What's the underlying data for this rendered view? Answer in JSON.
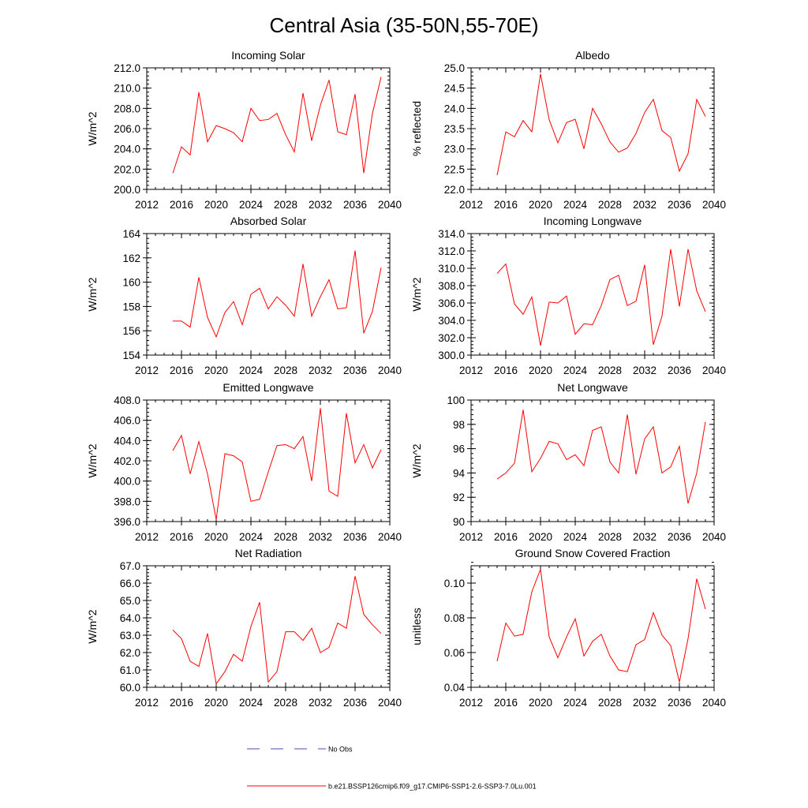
{
  "title": "Central Asia (35-50N,55-70E)",
  "legend": [
    {
      "label": "No Obs",
      "color": "#4a4ab8",
      "dash": "dashed"
    },
    {
      "label": "b.e21.BSSP126cmip6.f09_g17.CMIP6-SSP1-2.6-SSP3-7.0Lu.001",
      "color": "#ff0000",
      "dash": "solid"
    }
  ],
  "chart_data": [
    {
      "type": "line",
      "title": "Incoming Solar",
      "ylabel": "W/m^2",
      "xlim": [
        2012,
        2040
      ],
      "ylim": [
        200,
        212
      ],
      "xticks": [
        2012,
        2016,
        2020,
        2024,
        2028,
        2032,
        2036,
        2040
      ],
      "xtick_labels": [
        "2012",
        "2016",
        "2020",
        "2024",
        "2028",
        "2032",
        "2036",
        "2040"
      ],
      "yticks": [
        200,
        202,
        204,
        206,
        208,
        210,
        212
      ],
      "ytick_labels": [
        "200.0",
        "202.0",
        "204.0",
        "206.0",
        "208.0",
        "210.0",
        "212.0"
      ],
      "yminor": 0.4,
      "color": "#ff0000",
      "x": [
        2015,
        2016,
        2017,
        2018,
        2019,
        2020,
        2021,
        2022,
        2023,
        2024,
        2025,
        2026,
        2027,
        2028,
        2029,
        2030,
        2031,
        2032,
        2033,
        2034,
        2035,
        2036,
        2037,
        2038,
        2039
      ],
      "y": [
        201.6,
        204.2,
        203.4,
        209.6,
        204.7,
        206.3,
        206.0,
        205.6,
        204.7,
        208.0,
        206.8,
        206.9,
        207.5,
        205.4,
        203.7,
        209.5,
        204.8,
        208.3,
        210.8,
        205.7,
        205.4,
        209.4,
        201.6,
        207.5,
        211.1
      ]
    },
    {
      "type": "line",
      "title": "Albedo",
      "ylabel": "% reflected",
      "xlim": [
        2012,
        2040
      ],
      "ylim": [
        22,
        25
      ],
      "xticks": [
        2012,
        2016,
        2020,
        2024,
        2028,
        2032,
        2036,
        2040
      ],
      "xtick_labels": [
        "2012",
        "2016",
        "2020",
        "2024",
        "2028",
        "2032",
        "2036",
        "2040"
      ],
      "yticks": [
        22,
        22.5,
        23,
        23.5,
        24,
        24.5,
        25
      ],
      "ytick_labels": [
        "22.0",
        "22.5",
        "23.0",
        "23.5",
        "24.0",
        "24.5",
        "25.0"
      ],
      "yminor": 0.1,
      "color": "#ff0000",
      "x": [
        2015,
        2016,
        2017,
        2018,
        2019,
        2020,
        2021,
        2022,
        2023,
        2024,
        2025,
        2026,
        2027,
        2028,
        2029,
        2030,
        2031,
        2032,
        2033,
        2034,
        2035,
        2036,
        2037,
        2038,
        2039
      ],
      "y": [
        22.35,
        23.42,
        23.3,
        23.7,
        23.42,
        24.85,
        23.72,
        23.15,
        23.65,
        23.73,
        23.0,
        24.0,
        23.62,
        23.17,
        22.92,
        23.02,
        23.38,
        23.9,
        24.22,
        23.45,
        23.28,
        22.45,
        22.88,
        24.22,
        23.8
      ]
    },
    {
      "type": "line",
      "title": "Absorbed Solar",
      "ylabel": "W/m^2",
      "xlim": [
        2012,
        2040
      ],
      "ylim": [
        154,
        164
      ],
      "xticks": [
        2012,
        2016,
        2020,
        2024,
        2028,
        2032,
        2036,
        2040
      ],
      "xtick_labels": [
        "2012",
        "2016",
        "2020",
        "2024",
        "2028",
        "2032",
        "2036",
        "2040"
      ],
      "yticks": [
        154,
        156,
        158,
        160,
        162,
        164
      ],
      "ytick_labels": [
        "154",
        "156",
        "158",
        "160",
        "162",
        "164"
      ],
      "yminor": 0.4,
      "color": "#ff0000",
      "x": [
        2015,
        2016,
        2017,
        2018,
        2019,
        2020,
        2021,
        2022,
        2023,
        2024,
        2025,
        2026,
        2027,
        2028,
        2029,
        2030,
        2031,
        2032,
        2033,
        2034,
        2035,
        2036,
        2037,
        2038,
        2039
      ],
      "y": [
        156.8,
        156.8,
        156.3,
        160.4,
        157.1,
        155.5,
        157.5,
        158.4,
        156.5,
        159.0,
        159.5,
        157.8,
        158.8,
        158.1,
        157.2,
        161.5,
        157.2,
        158.8,
        160.2,
        157.8,
        157.9,
        162.6,
        155.8,
        157.6,
        161.2
      ]
    },
    {
      "type": "line",
      "title": "Incoming Longwave",
      "ylabel": "W/m^2",
      "xlim": [
        2012,
        2040
      ],
      "ylim": [
        300,
        314
      ],
      "xticks": [
        2012,
        2016,
        2020,
        2024,
        2028,
        2032,
        2036,
        2040
      ],
      "xtick_labels": [
        "2012",
        "2016",
        "2020",
        "2024",
        "2028",
        "2032",
        "2036",
        "2040"
      ],
      "yticks": [
        300,
        302,
        304,
        306,
        308,
        310,
        312,
        314
      ],
      "ytick_labels": [
        "300.0",
        "302.0",
        "304.0",
        "306.0",
        "308.0",
        "310.0",
        "312.0",
        "314.0"
      ],
      "yminor": 0.4,
      "color": "#ff0000",
      "x": [
        2015,
        2016,
        2017,
        2018,
        2019,
        2020,
        2021,
        2022,
        2023,
        2024,
        2025,
        2026,
        2027,
        2028,
        2029,
        2030,
        2031,
        2032,
        2033,
        2034,
        2035,
        2036,
        2037,
        2038,
        2039
      ],
      "y": [
        309.4,
        310.5,
        305.9,
        304.7,
        306.7,
        301.1,
        306.1,
        306.0,
        306.8,
        302.4,
        303.6,
        303.5,
        305.7,
        308.7,
        309.2,
        305.7,
        306.2,
        310.4,
        301.2,
        304.5,
        312.2,
        305.6,
        312.2,
        307.4,
        305.0
      ]
    },
    {
      "type": "line",
      "title": "Emitted Longwave",
      "ylabel": "W/m^2",
      "xlim": [
        2012,
        2040
      ],
      "ylim": [
        396,
        408
      ],
      "xticks": [
        2012,
        2016,
        2020,
        2024,
        2028,
        2032,
        2036,
        2040
      ],
      "xtick_labels": [
        "2012",
        "2016",
        "2020",
        "2024",
        "2028",
        "2032",
        "2036",
        "2040"
      ],
      "yticks": [
        396,
        398,
        400,
        402,
        404,
        406,
        408
      ],
      "ytick_labels": [
        "396.0",
        "398.0",
        "400.0",
        "402.0",
        "404.0",
        "406.0",
        "408.0"
      ],
      "yminor": 0.4,
      "color": "#ff0000",
      "x": [
        2015,
        2016,
        2017,
        2018,
        2019,
        2020,
        2021,
        2022,
        2023,
        2024,
        2025,
        2026,
        2027,
        2028,
        2029,
        2030,
        2031,
        2032,
        2033,
        2034,
        2035,
        2036,
        2037,
        2038,
        2039
      ],
      "y": [
        403.0,
        404.5,
        400.7,
        403.9,
        400.7,
        396.2,
        402.7,
        402.5,
        401.9,
        398.0,
        398.2,
        400.9,
        403.5,
        403.6,
        403.2,
        404.4,
        400.0,
        407.2,
        399.0,
        398.5,
        406.7,
        401.8,
        403.6,
        401.3,
        403.1
      ]
    },
    {
      "type": "line",
      "title": "Net Longwave",
      "ylabel": "W/m^2",
      "xlim": [
        2012,
        2040
      ],
      "ylim": [
        90,
        100
      ],
      "xticks": [
        2012,
        2016,
        2020,
        2024,
        2028,
        2032,
        2036,
        2040
      ],
      "xtick_labels": [
        "2012",
        "2016",
        "2020",
        "2024",
        "2028",
        "2032",
        "2036",
        "2040"
      ],
      "yticks": [
        90,
        92,
        94,
        96,
        98,
        100
      ],
      "ytick_labels": [
        "90",
        "92",
        "94",
        "96",
        "98",
        "100"
      ],
      "yminor": 0.4,
      "color": "#ff0000",
      "x": [
        2015,
        2016,
        2017,
        2018,
        2019,
        2020,
        2021,
        2022,
        2023,
        2024,
        2025,
        2026,
        2027,
        2028,
        2029,
        2030,
        2031,
        2032,
        2033,
        2034,
        2035,
        2036,
        2037,
        2038,
        2039
      ],
      "y": [
        93.5,
        94.0,
        94.8,
        99.2,
        94.1,
        95.2,
        96.6,
        96.4,
        95.1,
        95.5,
        94.6,
        97.5,
        97.8,
        94.9,
        94.0,
        98.8,
        93.9,
        96.8,
        97.8,
        94.0,
        94.5,
        96.2,
        91.5,
        94.0,
        98.2
      ]
    },
    {
      "type": "line",
      "title": "Net Radiation",
      "ylabel": "W/m^2",
      "xlim": [
        2012,
        2040
      ],
      "ylim": [
        60,
        67
      ],
      "xticks": [
        2012,
        2016,
        2020,
        2024,
        2028,
        2032,
        2036,
        2040
      ],
      "xtick_labels": [
        "2012",
        "2016",
        "2020",
        "2024",
        "2028",
        "2032",
        "2036",
        "2040"
      ],
      "yticks": [
        60,
        61,
        62,
        63,
        64,
        65,
        66,
        67
      ],
      "ytick_labels": [
        "60.0",
        "61.0",
        "62.0",
        "63.0",
        "64.0",
        "65.0",
        "66.0",
        "67.0"
      ],
      "yminor": 0.2,
      "color": "#ff0000",
      "x": [
        2015,
        2016,
        2017,
        2018,
        2019,
        2020,
        2021,
        2022,
        2023,
        2024,
        2025,
        2026,
        2027,
        2028,
        2029,
        2030,
        2031,
        2032,
        2033,
        2034,
        2035,
        2036,
        2037,
        2038,
        2039
      ],
      "y": [
        63.3,
        62.8,
        61.5,
        61.2,
        63.1,
        60.2,
        60.9,
        61.9,
        61.5,
        63.5,
        64.9,
        60.3,
        60.9,
        63.2,
        63.2,
        62.7,
        63.4,
        62.0,
        62.3,
        63.7,
        63.4,
        66.4,
        64.2,
        63.6,
        63.1
      ]
    },
    {
      "type": "line",
      "title": "Ground Snow Covered Fraction",
      "ylabel": "unitless",
      "xlim": [
        2012,
        2040
      ],
      "ylim": [
        0.04,
        0.11
      ],
      "xticks": [
        2012,
        2016,
        2020,
        2024,
        2028,
        2032,
        2036,
        2040
      ],
      "xtick_labels": [
        "2012",
        "2016",
        "2020",
        "2024",
        "2028",
        "2032",
        "2036",
        "2040"
      ],
      "yticks": [
        0.04,
        0.06,
        0.08,
        0.1
      ],
      "ytick_labels": [
        "0.04",
        "0.06",
        "0.08",
        "0.10"
      ],
      "yminor": 0.004,
      "color": "#ff0000",
      "x": [
        2015,
        2016,
        2017,
        2018,
        2019,
        2020,
        2021,
        2022,
        2023,
        2024,
        2025,
        2026,
        2027,
        2028,
        2029,
        2030,
        2031,
        2032,
        2033,
        2034,
        2035,
        2036,
        2037,
        2038,
        2039
      ],
      "y": [
        0.055,
        0.077,
        0.0695,
        0.0705,
        0.095,
        0.108,
        0.069,
        0.057,
        0.069,
        0.0795,
        0.058,
        0.0665,
        0.0705,
        0.058,
        0.05,
        0.049,
        0.0645,
        0.0675,
        0.083,
        0.07,
        0.064,
        0.043,
        0.068,
        0.1025,
        0.085
      ]
    }
  ]
}
